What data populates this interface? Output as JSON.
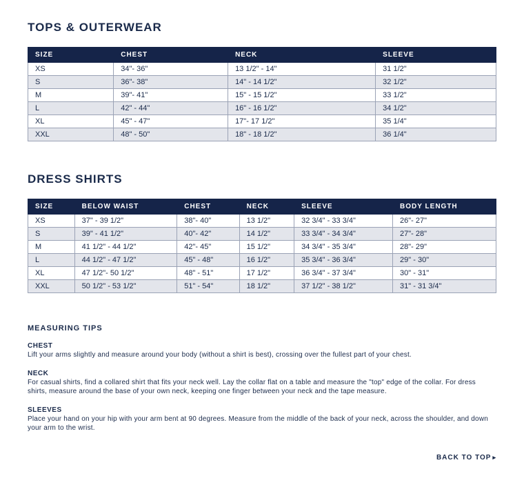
{
  "colors": {
    "header_bg": "#152449",
    "header_text": "#ffffff",
    "row_alt_bg": "#e3e5eb",
    "row_bg": "#ffffff",
    "border": "#9aa2b5",
    "text": "#1a2a4a"
  },
  "tops": {
    "title": "TOPS & OUTERWEAR",
    "columns": [
      "SIZE",
      "CHEST",
      "NECK",
      "SLEEVE"
    ],
    "rows": [
      [
        "XS",
        "34\"- 36\"",
        "13 1/2\" - 14\"",
        "31 1/2\""
      ],
      [
        "S",
        "36\"- 38\"",
        "14\" - 14 1/2\"",
        "32 1/2\""
      ],
      [
        "M",
        "39\"- 41\"",
        "15\" - 15 1/2\"",
        "33 1/2\""
      ],
      [
        "L",
        "42\" - 44\"",
        "16\" - 16 1/2\"",
        "34 1/2\""
      ],
      [
        "XL",
        "45\" - 47\"",
        "17\"- 17 1/2\"",
        "35 1/4\""
      ],
      [
        "XXL",
        "48\" - 50\"",
        "18\" - 18 1/2\"",
        "36 1/4\""
      ]
    ]
  },
  "dress": {
    "title": "DRESS SHIRTS",
    "columns": [
      "SIZE",
      "BELOW WAIST",
      "CHEST",
      "NECK",
      "SLEEVE",
      "BODY LENGTH"
    ],
    "rows": [
      [
        "XS",
        "37\" - 39 1/2\"",
        "38\"- 40\"",
        "13 1/2\"",
        "32 3/4\" - 33 3/4\"",
        "26\"- 27\""
      ],
      [
        "S",
        "39\" - 41 1/2\"",
        "40\"- 42\"",
        "14 1/2\"",
        "33 3/4\" - 34 3/4\"",
        "27\"- 28\""
      ],
      [
        "M",
        "41 1/2\" - 44 1/2\"",
        "42\"- 45\"",
        "15 1/2\"",
        "34 3/4\" - 35 3/4\"",
        "28\"- 29\""
      ],
      [
        "L",
        "44 1/2\" - 47 1/2\"",
        "45\" - 48\"",
        "16 1/2\"",
        "35 3/4\" - 36 3/4\"",
        "29\" - 30\""
      ],
      [
        "XL",
        "47 1/2\"- 50 1/2\"",
        "48\" - 51\"",
        "17 1/2\"",
        "36 3/4\" - 37 3/4\"",
        "30\" - 31\""
      ],
      [
        "XXL",
        "50 1/2\" - 53 1/2\"",
        "51\" - 54\"",
        "18 1/2\"",
        "37 1/2\" - 38 1/2\"",
        "31\" - 31 3/4\""
      ]
    ]
  },
  "tips": {
    "title": "MEASURING TIPS",
    "items": [
      {
        "heading": "CHEST",
        "text": "Lift your arms slightly and measure around your body (without a shirt is best), crossing over the fullest part of your chest."
      },
      {
        "heading": "NECK",
        "text": "For casual shirts, find a collared shirt that fits your neck well. Lay the collar flat on a table and measure the \"top\" edge of the collar. For dress shirts, measure around the base of your own neck, keeping one finger between your neck and the tape measure."
      },
      {
        "heading": "SLEEVES",
        "text": "Place your hand on your hip with your arm bent at 90 degrees. Measure from the middle of the back of your neck, across the shoulder, and down your arm to the wrist."
      }
    ]
  },
  "back_to_top": "BACK TO TOP"
}
